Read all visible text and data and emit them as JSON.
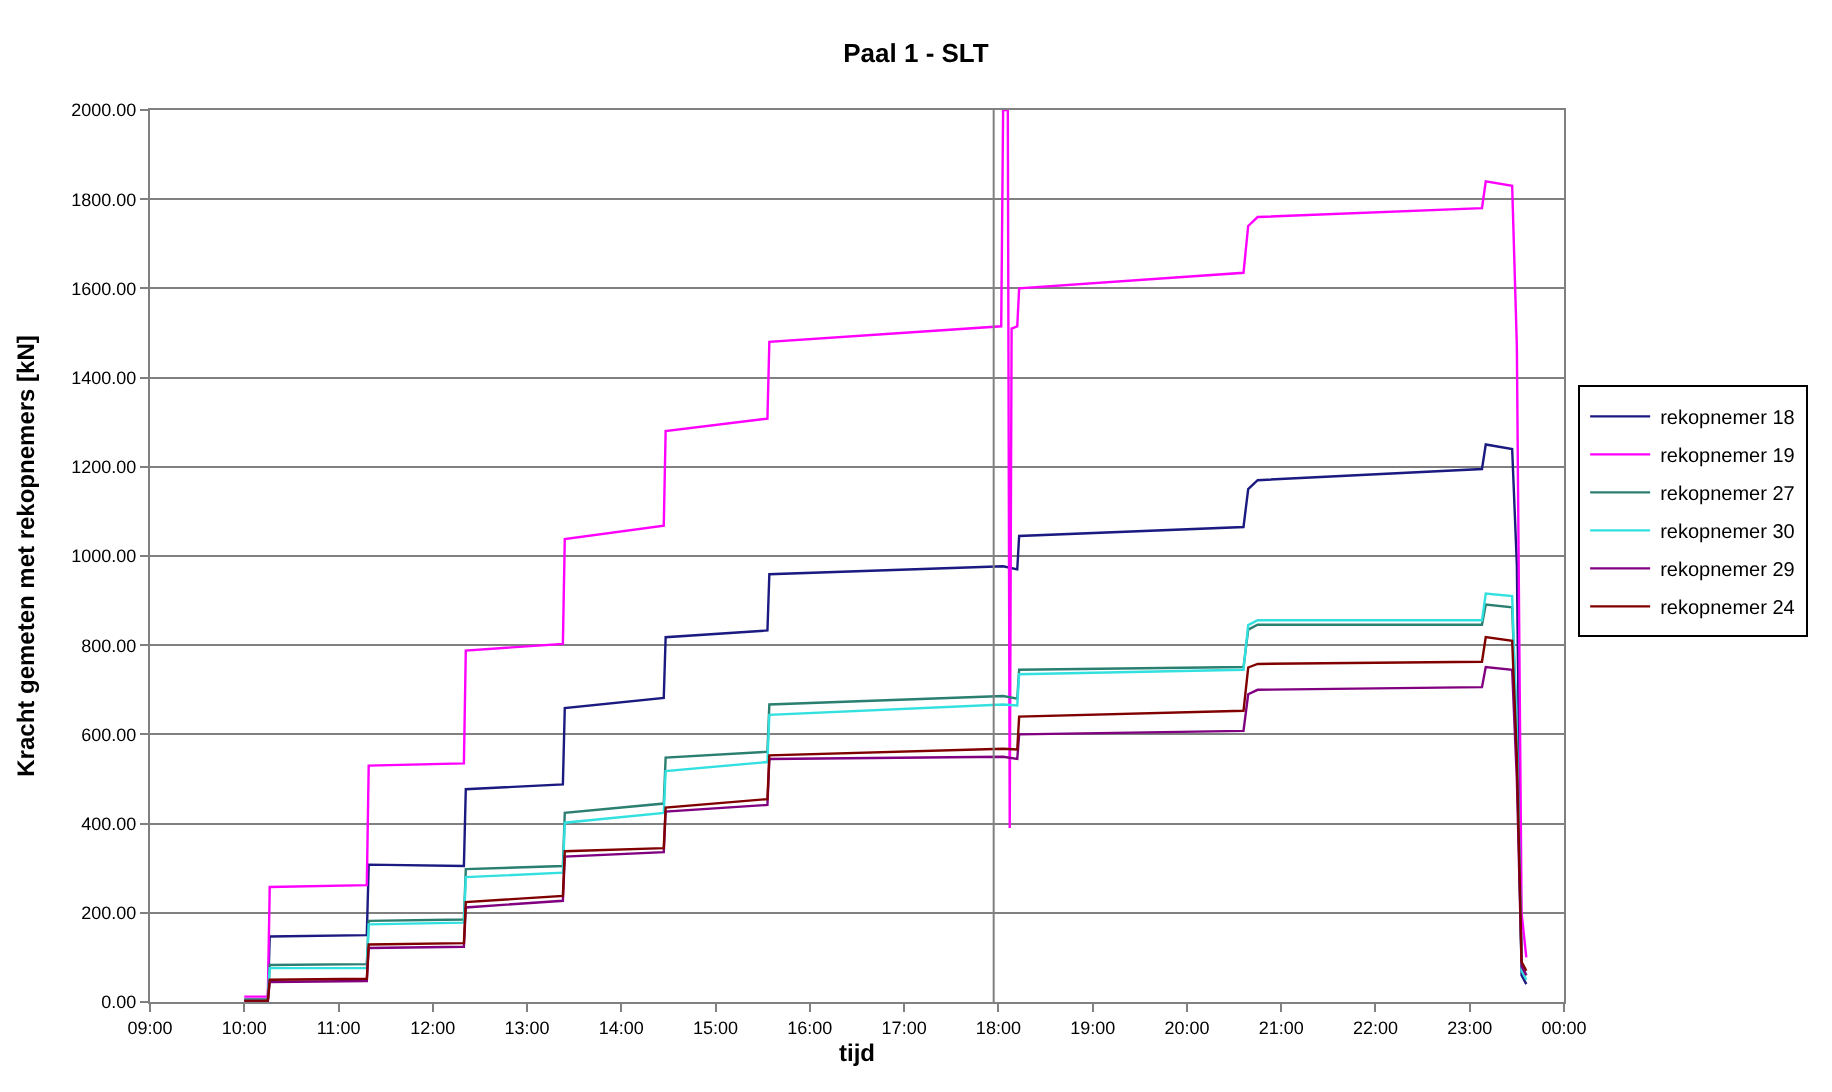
{
  "chart_data": {
    "type": "line",
    "title": "Paal 1 - SLT",
    "xlabel": "tijd",
    "ylabel": "Kracht gemeten met rekopnemers [kN]",
    "x": [
      10.0,
      10.25,
      10.27,
      11.3,
      11.32,
      12.33,
      12.35,
      13.38,
      13.4,
      14.45,
      14.47,
      15.55,
      15.57,
      18.05,
      18.2,
      18.22,
      20.6,
      20.65,
      20.75,
      23.13,
      23.17,
      23.45,
      23.5,
      23.55,
      23.6
    ],
    "series": [
      {
        "name": "rekopnemer 18",
        "color": "#1a1a80",
        "values": [
          5,
          5,
          147,
          150,
          308,
          305,
          477,
          488,
          659,
          682,
          818,
          833,
          959,
          977,
          970,
          1045,
          1065,
          1150,
          1170,
          1195,
          1250,
          1240,
          980,
          60,
          40
        ]
      },
      {
        "name": "rekopnemer 19",
        "color": "#ff00ff",
        "x": [
          10.0,
          10.25,
          10.27,
          11.3,
          11.32,
          12.33,
          12.35,
          13.38,
          13.4,
          14.45,
          14.47,
          15.55,
          15.57,
          18.03,
          18.05,
          18.1,
          18.12,
          18.14,
          18.2,
          18.22,
          20.6,
          20.65,
          20.75,
          23.13,
          23.17,
          23.45,
          23.5,
          23.55,
          23.6
        ],
        "values": [
          12,
          12,
          258,
          262,
          530,
          535,
          788,
          803,
          1038,
          1068,
          1280,
          1308,
          1480,
          1515,
          2000,
          2000,
          390,
          1510,
          1515,
          1600,
          1635,
          1740,
          1760,
          1780,
          1840,
          1830,
          1470,
          200,
          100
        ]
      },
      {
        "name": "rekopnemer 27",
        "color": "#2a7f70",
        "values": [
          5,
          5,
          83,
          85,
          182,
          185,
          298,
          305,
          424,
          445,
          548,
          561,
          667,
          686,
          680,
          745,
          751,
          835,
          846,
          846,
          891,
          885,
          600,
          80,
          60
        ]
      },
      {
        "name": "rekopnemer 30",
        "color": "#33e0e0",
        "values": [
          3,
          3,
          76,
          76,
          174,
          178,
          280,
          290,
          402,
          424,
          518,
          538,
          644,
          667,
          665,
          735,
          745,
          845,
          856,
          856,
          916,
          910,
          600,
          70,
          50
        ]
      },
      {
        "name": "rekopnemer 29",
        "color": "#800080",
        "values": [
          2,
          2,
          45,
          47,
          121,
          124,
          212,
          227,
          326,
          336,
          427,
          442,
          545,
          550,
          545,
          600,
          608,
          690,
          700,
          706,
          751,
          745,
          500,
          80,
          60
        ]
      },
      {
        "name": "rekopnemer 24",
        "color": "#800000",
        "values": [
          3,
          3,
          50,
          52,
          129,
          132,
          224,
          238,
          338,
          345,
          436,
          455,
          553,
          568,
          566,
          640,
          653,
          750,
          758,
          763,
          818,
          810,
          550,
          90,
          70
        ]
      }
    ],
    "xlim": [
      9,
      24
    ],
    "xticks": [
      {
        "value": 9,
        "label": "09:00"
      },
      {
        "value": 10,
        "label": "10:00"
      },
      {
        "value": 11,
        "label": "11:00"
      },
      {
        "value": 12,
        "label": "12:00"
      },
      {
        "value": 13,
        "label": "13:00"
      },
      {
        "value": 14,
        "label": "14:00"
      },
      {
        "value": 15,
        "label": "15:00"
      },
      {
        "value": 16,
        "label": "16:00"
      },
      {
        "value": 17,
        "label": "17:00"
      },
      {
        "value": 18,
        "label": "18:00"
      },
      {
        "value": 19,
        "label": "19:00"
      },
      {
        "value": 20,
        "label": "20:00"
      },
      {
        "value": 21,
        "label": "21:00"
      },
      {
        "value": 22,
        "label": "22:00"
      },
      {
        "value": 23,
        "label": "23:00"
      },
      {
        "value": 24,
        "label": "00:00"
      }
    ],
    "ylim": [
      0,
      2000
    ],
    "yticks": [
      {
        "value": 0,
        "label": "0.00"
      },
      {
        "value": 200,
        "label": "200.00"
      },
      {
        "value": 400,
        "label": "400.00"
      },
      {
        "value": 600,
        "label": "600.00"
      },
      {
        "value": 800,
        "label": "800.00"
      },
      {
        "value": 1000,
        "label": "1000.00"
      },
      {
        "value": 1200,
        "label": "1200.00"
      },
      {
        "value": 1400,
        "label": "1400.00"
      },
      {
        "value": 1600,
        "label": "1600.00"
      },
      {
        "value": 1800,
        "label": "1800.00"
      },
      {
        "value": 2000,
        "label": "2000.00"
      }
    ],
    "ref_lines": [
      {
        "axis": "x",
        "value": 17.95,
        "color": "#808080"
      }
    ],
    "grid": "y",
    "legend": "right",
    "marker": "none",
    "line_style": "solid"
  }
}
